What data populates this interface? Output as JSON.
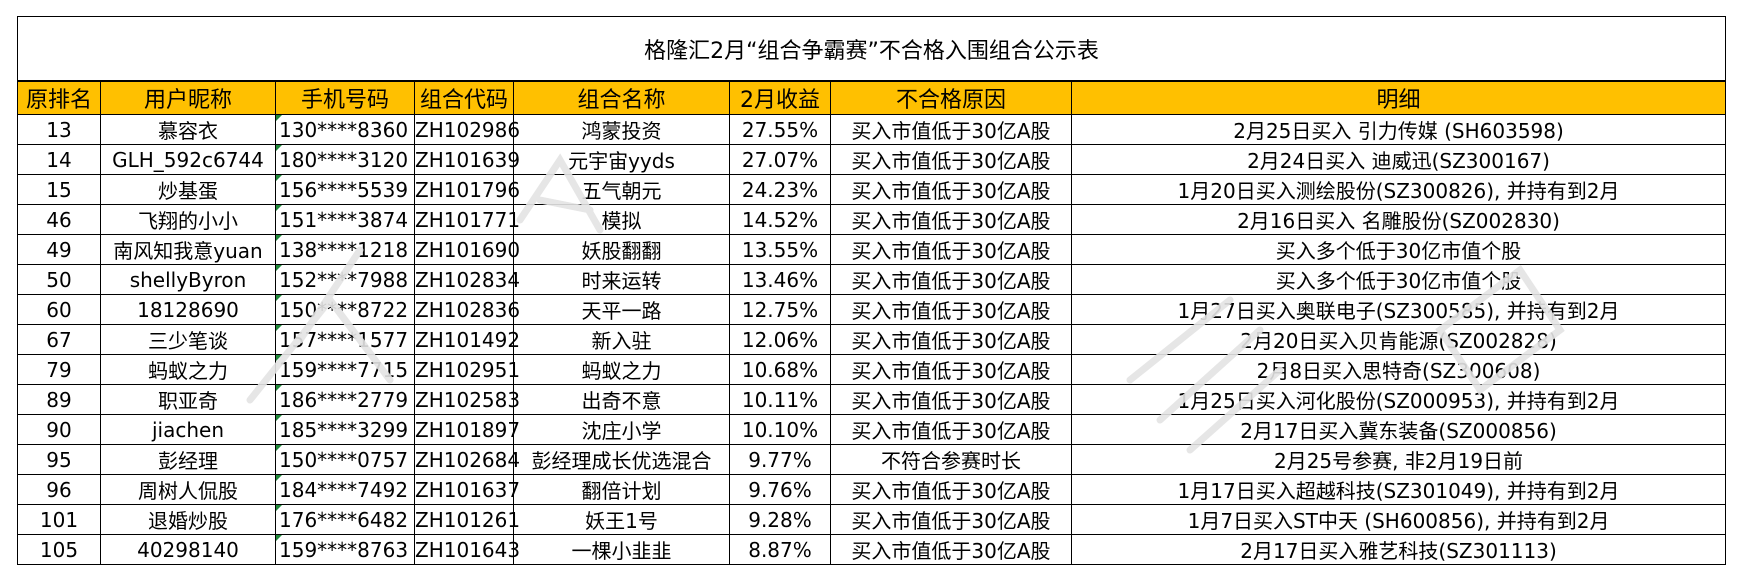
{
  "title": "格隆汇2月“组合争霸赛”不合格入围组合公示表",
  "headers": [
    "原排名",
    "用户昵称",
    "手机号码",
    "组合代码",
    "组合名称",
    "2月收益",
    "不合格原因",
    "明细"
  ],
  "rows": [
    [
      "13",
      "慕容衣",
      "130****8360",
      "ZH102986",
      "鸿蒙投资",
      "27.55%",
      "买入市值低于30亿A股",
      "2月25日买入 引力传媒 (SH603598)"
    ],
    [
      "14",
      "GLH_592c6744",
      "180****3120",
      "ZH101639",
      "元宇宙yyds",
      "27.07%",
      "买入市值低于30亿A股",
      "2月24日买入 迪威迅(SZ300167)"
    ],
    [
      "15",
      "炒基蛋",
      "156****5539",
      "ZH101796",
      "五气朝元",
      "24.23%",
      "买入市值低于30亿A股",
      "1月20日买入测绘股份(SZ300826), 并持有到2月"
    ],
    [
      "46",
      "飞翔的小小",
      "151****3874",
      "ZH101771",
      "模拟",
      "14.52%",
      "买入市值低于30亿A股",
      "2月16日买入 名雕股份(SZ002830)"
    ],
    [
      "49",
      "南风知我意yuan",
      "138****1218",
      "ZH101690",
      "妖股翻翻",
      "13.55%",
      "买入市值低于30亿A股",
      "买入多个低于30亿市值个股"
    ],
    [
      "50",
      "shellyByron",
      "152****7988",
      "ZH102834",
      "时来运转",
      "13.46%",
      "买入市值低于30亿A股",
      "买入多个低于30亿市值个股"
    ],
    [
      "60",
      "18128690",
      "150****8722",
      "ZH102836",
      "天平一路",
      "12.75%",
      "买入市值低于30亿A股",
      "1月27日买入奥联电子(SZ300585), 并持有到2月"
    ],
    [
      "67",
      "三少笔谈",
      "157****1577",
      "ZH101492",
      "新入驻",
      "12.06%",
      "买入市值低于30亿A股",
      "2月20日买入贝肯能源(SZ002828)"
    ],
    [
      "79",
      "蚂蚁之力",
      "159****7715",
      "ZH102951",
      "蚂蚁之力",
      "10.68%",
      "买入市值低于30亿A股",
      "2月8日买入思特奇(SZ300608)"
    ],
    [
      "89",
      "职亚奇",
      "186****2779",
      "ZH102583",
      "出奇不意",
      "10.11%",
      "买入市值低于30亿A股",
      "1月25日买入河化股份(SZ000953), 并持有到2月"
    ],
    [
      "90",
      "jiachen",
      "185****3299",
      "ZH101897",
      "沈庄小学",
      "10.10%",
      "买入市值低于30亿A股",
      "2月17日买入冀东装备(SZ000856)"
    ],
    [
      "95",
      "彭经理",
      "150****0757",
      "ZH102684",
      "彭经理成长优选混合",
      "9.77%",
      "不符合参赛时长",
      "2月25号参赛, 非2月19日前"
    ],
    [
      "96",
      "周树人侃股",
      "184****7492",
      "ZH101637",
      "翻倍计划",
      "9.76%",
      "买入市值低于30亿A股",
      "1月17日买入超越科技(SZ301049), 并持有到2月"
    ],
    [
      "101",
      "退婚炒股",
      "176****6482",
      "ZH101261",
      "妖王1号",
      "9.28%",
      "买入市值低于30亿A股",
      "1月7日买入ST中天 (SH600856), 并持有到2月"
    ],
    [
      "105",
      "40298140",
      "159****8763",
      "ZH101643",
      "一棵小韭韭",
      "8.87%",
      "买入市值低于30亿A股",
      "2月17日买入雅艺科技(SZ301113)"
    ]
  ],
  "colors": {
    "header_bg": "#FFC000",
    "border": "#000000",
    "watermark": "#e3e3e3"
  }
}
